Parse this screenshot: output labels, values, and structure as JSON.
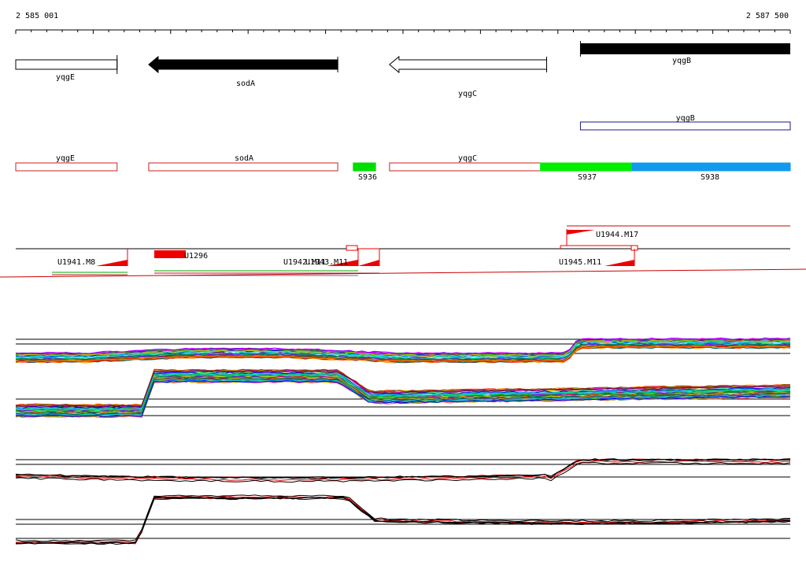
{
  "ruler": {
    "start_label": "2 585 001",
    "end_label": "2 587 500",
    "start_bp": 2585001,
    "end_bp": 2587500
  },
  "genes": [
    {
      "name": "yqgE",
      "start": 2585001,
      "end": 2585328,
      "strand": "+",
      "fill": "#ffffff",
      "label_below": true
    },
    {
      "name": "sodA",
      "start": 2585430,
      "end": 2586040,
      "strand": "-",
      "fill": "#000000",
      "label_below": true
    },
    {
      "name": "yqgC",
      "start": 2586207,
      "end": 2586714,
      "strand": "-",
      "fill": "#ffffff",
      "label_below": true
    },
    {
      "name": "yqgB",
      "start": 2586823,
      "end": 2587500,
      "strand": "+",
      "fill": "#000000",
      "label_below": true
    }
  ],
  "genes_track2": [
    {
      "name": "yqgB",
      "start": 2586823,
      "end": 2587500,
      "stroke": "#1a1a8a"
    }
  ],
  "annotations": [
    {
      "name": "yqgE",
      "start": 2585001,
      "end": 2585328,
      "fill": "#ffffff",
      "stroke": "#cc2222",
      "label_pos": "above"
    },
    {
      "name": "sodA",
      "start": 2585430,
      "end": 2586040,
      "fill": "#ffffff",
      "stroke": "#cc2222",
      "label_pos": "above"
    },
    {
      "name": "S936",
      "start": 2586090,
      "end": 2586162,
      "fill": "#00dd00",
      "stroke": "#00dd00",
      "label_pos": "below"
    },
    {
      "name": "yqgC",
      "start": 2586207,
      "end": 2586714,
      "fill": "#ffffff",
      "stroke": "#cc2222",
      "label_pos": "above"
    },
    {
      "name": "S937",
      "start": 2586694,
      "end": 2586990,
      "fill": "#00ee00",
      "stroke": "#00ee00",
      "label_pos": "below"
    },
    {
      "name": "S938",
      "start": 2586990,
      "end": 2587500,
      "fill": "#1199ee",
      "stroke": "#1199ee",
      "label_pos": "below"
    }
  ],
  "transcripts": [
    {
      "name": "U1941.M8",
      "x1": 20,
      "x2": 162,
      "y": 316,
      "ramp_from": 122
    },
    {
      "name": "U1296",
      "x1": 196,
      "x2": 236,
      "y": 316,
      "solid": true
    },
    {
      "name": "U1942.M11",
      "x1": 300,
      "x2": 455,
      "y": 316,
      "ramp_from": 415,
      "label_offset": 360
    },
    {
      "name": "U1943.M11",
      "x1": 388,
      "x2": 482,
      "y": 316,
      "ramp_from": 455,
      "label_offset": 388
    },
    {
      "name": "U1944.M17",
      "x1": 712,
      "x2": 1004,
      "y": 287,
      "ramp_from": 720,
      "ramp_to": 756,
      "upper": true
    },
    {
      "name": "U1945.M11",
      "x1": 712,
      "x2": 806,
      "y": 316,
      "ramp_from": 768
    }
  ],
  "colors": {
    "gene_stroke": "#000000",
    "annotation_stroke": "#cc2222",
    "transcript": "#ee0000",
    "divider": "#cc0000"
  }
}
